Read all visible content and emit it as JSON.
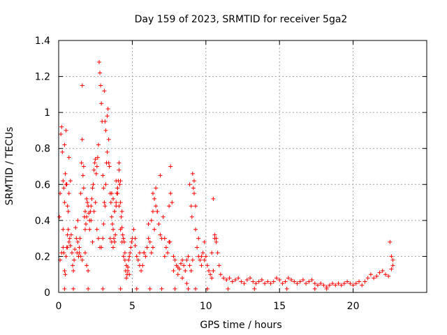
{
  "chart_data": {
    "type": "scatter",
    "title": "Day 159 of 2023, SRMTID for receiver 5ga2",
    "xlabel": "GPS time / hours",
    "ylabel": "SRMTID / TECUs",
    "xlim": [
      0,
      25
    ],
    "ylim": [
      0,
      1.4
    ],
    "xticks": [
      0,
      5,
      10,
      15,
      20
    ],
    "xtick_labels": [
      "0",
      "5",
      "10",
      "15",
      "20"
    ],
    "yticks": [
      0,
      0.2,
      0.4,
      0.6,
      0.8,
      1,
      1.2,
      1.4
    ],
    "ytick_labels": [
      "0",
      "0.2",
      "0.4",
      "0.6",
      "0.8",
      "1",
      "1.2",
      "1.4"
    ],
    "grid": true,
    "marker": "+",
    "marker_color": "#ff0000",
    "series": [
      {
        "name": "SRMTID",
        "x": [
          0.05,
          0.1,
          0.15,
          0.2,
          0.25,
          0.3,
          0.35,
          0.4,
          0.45,
          0.5,
          0.55,
          0.6,
          0.65,
          0.7,
          0.75,
          0.8,
          0.85,
          0.9,
          0.95,
          1.0,
          1.05,
          1.1,
          1.15,
          1.2,
          1.25,
          1.3,
          1.35,
          1.4,
          1.45,
          1.5,
          1.55,
          1.6,
          1.65,
          1.7,
          1.75,
          1.8,
          1.85,
          1.9,
          1.95,
          2.0,
          2.05,
          2.1,
          2.15,
          2.2,
          2.25,
          2.3,
          2.35,
          2.4,
          2.45,
          2.5,
          2.55,
          2.6,
          2.65,
          2.7,
          2.75,
          2.8,
          2.85,
          2.9,
          2.95,
          3.0,
          3.05,
          3.1,
          3.15,
          3.2,
          3.25,
          3.3,
          3.35,
          3.4,
          3.45,
          3.5,
          3.55,
          3.6,
          3.65,
          3.7,
          3.75,
          3.8,
          3.85,
          3.9,
          3.95,
          4.0,
          4.05,
          4.1,
          4.15,
          4.2,
          4.25,
          4.3,
          4.35,
          4.4,
          4.45,
          4.5,
          4.55,
          4.6,
          4.65,
          4.7,
          4.75,
          4.8,
          4.85,
          4.9,
          4.95,
          5.0,
          5.1,
          5.2,
          5.3,
          5.4,
          5.5,
          5.6,
          5.7,
          5.8,
          5.9,
          6.0,
          6.1,
          6.2,
          6.3,
          6.4,
          6.5,
          6.6,
          6.7,
          6.8,
          6.9,
          7.0,
          7.1,
          7.2,
          7.3,
          7.4,
          7.5,
          7.6,
          7.7,
          7.8,
          7.9,
          8.0,
          8.1,
          8.2,
          8.3,
          8.4,
          8.5,
          8.6,
          8.7,
          8.8,
          8.9,
          9.0,
          9.1,
          9.2,
          9.3,
          9.4,
          9.5,
          9.6,
          9.7,
          9.8,
          9.9,
          10.0,
          10.1,
          10.2,
          10.3,
          10.4,
          10.5,
          10.6,
          10.7,
          10.8,
          10.9,
          11.0,
          11.2,
          11.4,
          11.6,
          11.8,
          12.0,
          12.2,
          12.4,
          12.6,
          12.8,
          13.0,
          13.2,
          13.4,
          13.6,
          13.8,
          14.0,
          14.2,
          14.4,
          14.6,
          14.8,
          15.0,
          15.2,
          15.4,
          15.6,
          15.8,
          16.0,
          16.2,
          16.4,
          16.6,
          16.8,
          17.0,
          17.2,
          17.4,
          17.6,
          17.8,
          18.0,
          18.2,
          18.4,
          18.6,
          18.8,
          19.0,
          19.2,
          19.4,
          19.6,
          19.8,
          20.0,
          20.2,
          20.4,
          20.6,
          20.8,
          21.0,
          21.2,
          21.4,
          21.6,
          21.8,
          22.0,
          22.2,
          22.4,
          22.6,
          22.7,
          0.1,
          0.2,
          0.3,
          0.4,
          0.5,
          0.6,
          0.7,
          0.8,
          1.6,
          1.7,
          1.8,
          1.9,
          2.3,
          2.4,
          2.5,
          2.6,
          2.9,
          3.0,
          3.05,
          3.1,
          3.15,
          3.2,
          3.3,
          3.4,
          3.5,
          3.6,
          3.7,
          3.8,
          3.9,
          4.0,
          4.1,
          4.2,
          4.3,
          6.3,
          6.4,
          6.5,
          6.6,
          6.7,
          7.5,
          7.55,
          7.6,
          8.9,
          9.0,
          9.05,
          9.1,
          9.15,
          9.2,
          9.3,
          10.5,
          10.6,
          10.7,
          22.5,
          22.6,
          22.7,
          0.3,
          0.35,
          0.4,
          0.45,
          0.5,
          0.55,
          0.6,
          0.65,
          0.7,
          1.3,
          1.4,
          1.5,
          1.6,
          1.8,
          1.9,
          2.0,
          2.1,
          2.2,
          2.7,
          2.8,
          3.6,
          3.7,
          3.8,
          3.9,
          4.0,
          4.1,
          4.2,
          4.3,
          4.4,
          4.5,
          4.6,
          4.7,
          4.8,
          5.2,
          5.5,
          5.8,
          6.1,
          6.4,
          6.9,
          7.2,
          7.8,
          8.1,
          8.4,
          8.7,
          9.5,
          9.7,
          9.9,
          10.2,
          10.4,
          0.4,
          1.0,
          2.0,
          3.0,
          4.2,
          5.3,
          6.2,
          7.0,
          7.9,
          8.8,
          9.3,
          10.1,
          11.5,
          13.3,
          15.5,
          17.4,
          18.2
        ],
        "y": [
          0.42,
          0.55,
          0.88,
          0.92,
          0.78,
          0.62,
          0.58,
          0.5,
          0.66,
          0.9,
          0.6,
          0.48,
          0.35,
          0.28,
          0.3,
          0.26,
          0.32,
          0.22,
          0.15,
          0.12,
          0.18,
          0.24,
          0.36,
          0.3,
          0.22,
          0.28,
          0.2,
          0.25,
          0.3,
          0.55,
          0.72,
          1.15,
          0.65,
          0.58,
          0.42,
          0.45,
          0.38,
          0.52,
          0.5,
          0.48,
          0.44,
          0.4,
          0.45,
          0.48,
          0.52,
          0.58,
          0.6,
          0.68,
          0.72,
          0.74,
          0.66,
          0.7,
          0.75,
          0.82,
          1.28,
          1.22,
          1.15,
          1.05,
          0.95,
          0.65,
          0.58,
          0.5,
          0.48,
          0.6,
          0.72,
          0.98,
          1.02,
          0.85,
          0.7,
          0.55,
          0.5,
          0.42,
          0.38,
          0.35,
          0.3,
          0.28,
          0.32,
          0.48,
          0.55,
          0.58,
          0.62,
          0.68,
          0.6,
          0.5,
          0.42,
          0.36,
          0.32,
          0.3,
          0.28,
          0.22,
          0.12,
          0.08,
          0.1,
          0.14,
          0.18,
          0.2,
          0.22,
          0.25,
          0.28,
          0.3,
          0.35,
          0.26,
          0.2,
          0.18,
          0.15,
          0.12,
          0.15,
          0.22,
          0.2,
          0.25,
          0.3,
          0.28,
          0.22,
          0.25,
          0.35,
          0.58,
          0.45,
          0.38,
          0.32,
          0.3,
          0.42,
          0.3,
          0.25,
          0.22,
          0.28,
          0.7,
          0.5,
          0.2,
          0.18,
          0.15,
          0.14,
          0.13,
          0.16,
          0.18,
          0.15,
          0.12,
          0.18,
          0.2,
          0.15,
          0.12,
          0.18,
          0.62,
          0.35,
          0.25,
          0.2,
          0.18,
          0.15,
          0.22,
          0.28,
          0.2,
          0.15,
          0.12,
          0.1,
          0.08,
          0.12,
          0.3,
          0.28,
          0.22,
          0.15,
          0.1,
          0.08,
          0.07,
          0.08,
          0.06,
          0.07,
          0.08,
          0.06,
          0.05,
          0.07,
          0.08,
          0.06,
          0.05,
          0.06,
          0.07,
          0.05,
          0.06,
          0.05,
          0.06,
          0.08,
          0.07,
          0.05,
          0.06,
          0.08,
          0.07,
          0.06,
          0.05,
          0.06,
          0.07,
          0.05,
          0.06,
          0.07,
          0.05,
          0.04,
          0.05,
          0.04,
          0.03,
          0.04,
          0.05,
          0.04,
          0.05,
          0.04,
          0.05,
          0.06,
          0.05,
          0.04,
          0.05,
          0.06,
          0.04,
          0.06,
          0.08,
          0.1,
          0.08,
          0.09,
          0.11,
          0.12,
          0.1,
          0.09,
          0.13,
          0.15,
          0.18,
          0.22,
          0.35,
          0.82,
          0.6,
          0.25,
          0.55,
          0.62,
          0.85,
          0.7,
          0.35,
          0.42,
          0.28,
          0.45,
          0.5,
          0.35,
          0.25,
          0.3,
          0.38,
          1.12,
          0.95,
          0.9,
          0.78,
          0.72,
          0.3,
          0.28,
          0.25,
          0.45,
          0.5,
          0.55,
          0.72,
          0.62,
          0.45,
          0.4,
          0.55,
          0.52,
          0.48,
          0.45,
          0.48,
          0.28,
          0.55,
          0.6,
          0.48,
          0.42,
          0.66,
          0.58,
          0.55,
          0.48,
          0.52,
          0.32,
          0.3,
          0.28,
          0.2,
          0.18,
          0.25,
          0.22,
          0.12,
          0.1,
          0.2,
          0.25,
          0.32,
          0.45,
          0.75,
          0.4,
          0.22,
          0.2,
          0.18,
          0.22,
          0.15,
          0.12,
          0.35,
          0.4,
          0.3,
          0.25,
          0.55,
          0.52,
          0.45,
          0.62,
          0.58,
          0.48,
          0.35,
          0.28,
          0.2,
          0.18,
          0.15,
          0.12,
          0.1,
          0.3,
          0.22,
          0.22,
          0.38,
          0.45,
          0.65,
          0.2,
          0.12,
          0.1,
          0.08,
          0.05,
          0.3,
          0.2,
          0.18,
          0.12,
          0.22,
          0.02,
          0.02,
          0.02,
          0.02,
          0.02,
          0.02,
          0.02,
          0.02,
          0.02,
          0.02,
          0.02,
          0.02,
          0.02,
          0.02,
          0.02,
          0.02,
          0.02
        ]
      }
    ]
  }
}
